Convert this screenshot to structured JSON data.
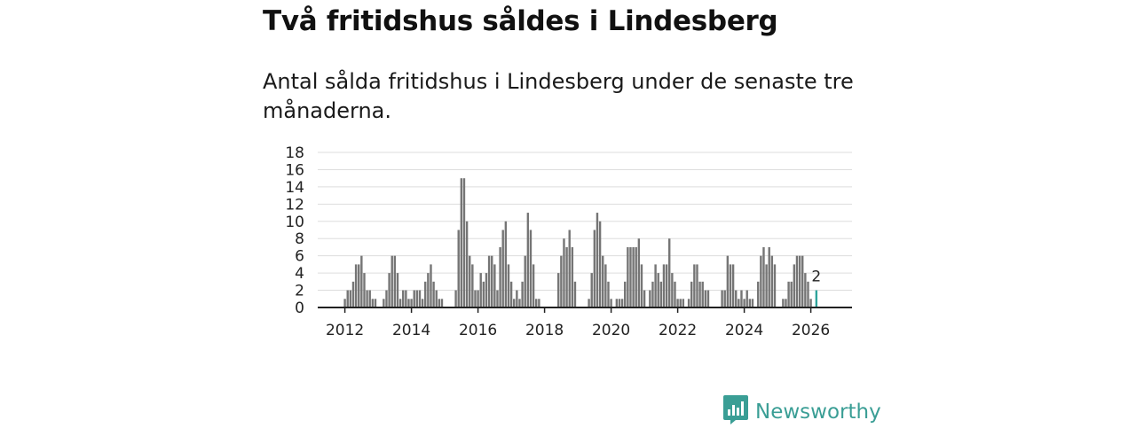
{
  "title": "Två fritidshus såldes i Lindesberg",
  "subtitle": "Antal sålda fritidshus i Lindesberg under de senaste tre månaderna.",
  "brand": {
    "name": "Newsworthy",
    "icon": "newsworthy-logo-icon",
    "color": "#3a9e95"
  },
  "colors": {
    "bar": "#757575",
    "highlight": "#2ea39a",
    "grid": "#dddddd",
    "axis": "#222222"
  },
  "chart_data": {
    "type": "bar",
    "title": "Två fritidshus såldes i Lindesberg",
    "xlabel": "",
    "ylabel": "",
    "ylim": [
      0,
      18
    ],
    "yticks": [
      "0",
      "2",
      "4",
      "6",
      "8",
      "10",
      "12",
      "14",
      "16",
      "18"
    ],
    "xticks": [
      "2012",
      "2014",
      "2016",
      "2018",
      "2020",
      "2022",
      "2024",
      "2026"
    ],
    "grid": true,
    "start": {
      "year": 2012,
      "month": 1
    },
    "highlight_label": "2",
    "series": [
      {
        "name": "Antal sålda fritidshus",
        "values": [
          1,
          2,
          2,
          3,
          5,
          5,
          6,
          4,
          2,
          2,
          1,
          1,
          0,
          0,
          1,
          2,
          4,
          6,
          6,
          4,
          1,
          2,
          2,
          1,
          1,
          2,
          2,
          2,
          1,
          3,
          4,
          5,
          3,
          2,
          1,
          1,
          0,
          0,
          0,
          0,
          2,
          9,
          15,
          15,
          10,
          6,
          5,
          2,
          2,
          4,
          3,
          4,
          6,
          6,
          5,
          2,
          7,
          9,
          10,
          5,
          3,
          1,
          2,
          1,
          3,
          6,
          11,
          9,
          5,
          1,
          1,
          0,
          0,
          0,
          0,
          0,
          0,
          4,
          6,
          8,
          7,
          9,
          7,
          3,
          0,
          0,
          0,
          0,
          1,
          4,
          9,
          11,
          10,
          6,
          5,
          3,
          1,
          0,
          1,
          1,
          1,
          3,
          7,
          7,
          7,
          7,
          8,
          5,
          2,
          0,
          2,
          3,
          5,
          4,
          3,
          5,
          5,
          8,
          4,
          3,
          1,
          1,
          1,
          0,
          1,
          3,
          5,
          5,
          3,
          3,
          2,
          2,
          0,
          0,
          0,
          0,
          2,
          2,
          6,
          5,
          5,
          2,
          1,
          2,
          1,
          2,
          1,
          1,
          0,
          3,
          6,
          7,
          5,
          7,
          6,
          5,
          0,
          0,
          1,
          1,
          3,
          3,
          5,
          6,
          6,
          6,
          4,
          3,
          1,
          0,
          2
        ]
      }
    ]
  }
}
